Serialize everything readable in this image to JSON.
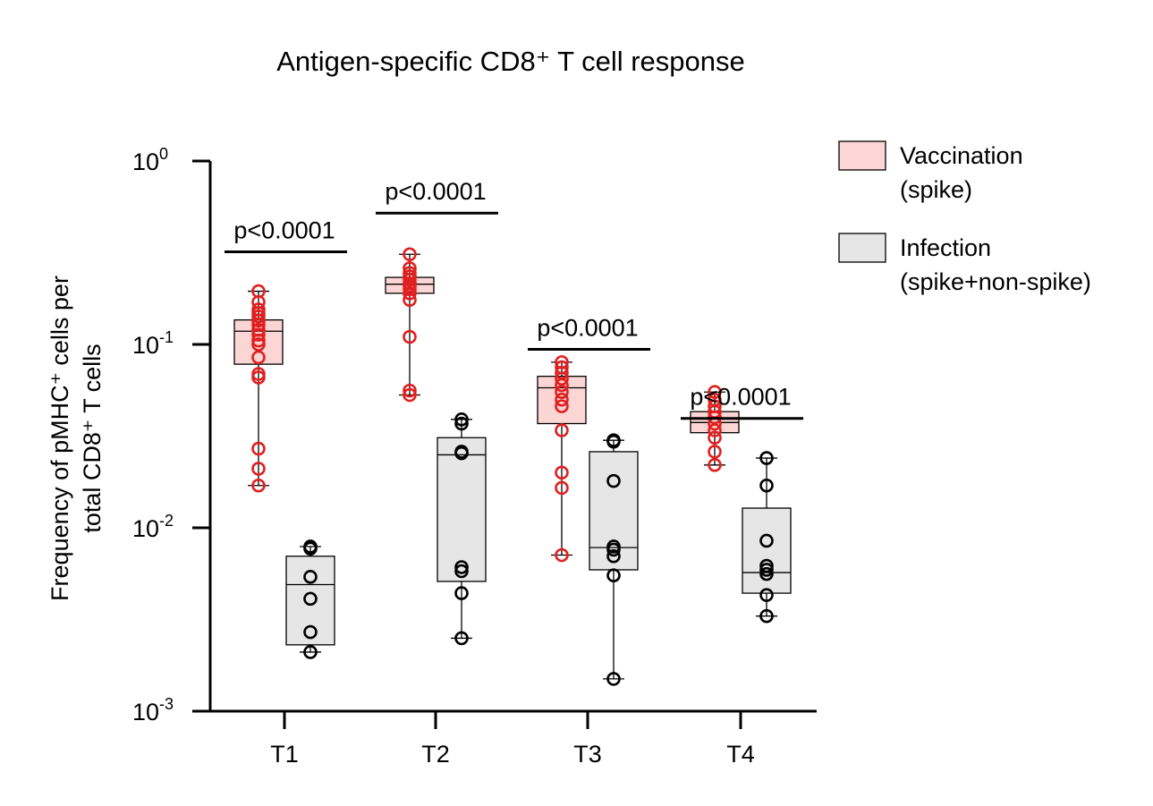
{
  "chart_data": {
    "type": "box",
    "title": "Antigen-specific CD8⁺ T cell response",
    "ylabel_lines": [
      "Frequency of pMHC⁺ cells per",
      "total CD8⁺ T cells"
    ],
    "xlabel": "",
    "yscale": "log",
    "ylim": [
      0.001,
      1
    ],
    "yticks": [
      {
        "value": 1,
        "base": "10",
        "exp": "0"
      },
      {
        "value": 0.1,
        "base": "10",
        "exp": "-1"
      },
      {
        "value": 0.01,
        "base": "10",
        "exp": "-2"
      },
      {
        "value": 0.001,
        "base": "10",
        "exp": "-3"
      }
    ],
    "categories": [
      "T1",
      "T2",
      "T3",
      "T4"
    ],
    "grid": false,
    "legend_position": "right",
    "series": [
      {
        "name": "Vaccination (spike)",
        "legend_lines": [
          "Vaccination",
          "(spike)"
        ],
        "fill": "#fcd5d5",
        "marker_color": "#e02020",
        "boxes": [
          {
            "min": 0.017,
            "q1": 0.078,
            "median": 0.118,
            "q3": 0.136,
            "max": 0.195,
            "points": [
              0.195,
              0.17,
              0.155,
              0.148,
              0.142,
              0.135,
              0.128,
              0.12,
              0.113,
              0.105,
              0.1,
              0.085,
              0.069,
              0.066,
              0.027,
              0.021,
              0.017
            ]
          },
          {
            "min": 0.053,
            "q1": 0.19,
            "median": 0.213,
            "q3": 0.232,
            "max": 0.31,
            "points": [
              0.31,
              0.26,
              0.245,
              0.235,
              0.225,
              0.215,
              0.208,
              0.2,
              0.19,
              0.175,
              0.11,
              0.056,
              0.053
            ]
          },
          {
            "min": 0.0071,
            "q1": 0.037,
            "median": 0.058,
            "q3": 0.067,
            "max": 0.08,
            "points": [
              0.08,
              0.075,
              0.07,
              0.065,
              0.06,
              0.055,
              0.05,
              0.046,
              0.034,
              0.02,
              0.0165,
              0.0071
            ]
          },
          {
            "min": 0.022,
            "q1": 0.033,
            "median": 0.0375,
            "q3": 0.043,
            "max": 0.055,
            "points": [
              0.055,
              0.05,
              0.046,
              0.043,
              0.04,
              0.037,
              0.034,
              0.031,
              0.026,
              0.022
            ]
          }
        ]
      },
      {
        "name": "Infection (spike+non-spike)",
        "legend_lines": [
          "Infection",
          "(spike+non-spike)"
        ],
        "fill": "#e6e6e6",
        "marker_color": "#000000",
        "boxes": [
          {
            "min": 0.0021,
            "q1": 0.0023,
            "median": 0.0049,
            "q3": 0.007,
            "max": 0.0079,
            "points": [
              0.0079,
              0.0077,
              0.0054,
              0.0041,
              0.0027,
              0.0021
            ]
          },
          {
            "min": 0.0025,
            "q1": 0.0051,
            "median": 0.025,
            "q3": 0.031,
            "max": 0.039,
            "points": [
              0.039,
              0.037,
              0.026,
              0.0255,
              0.0061,
              0.0058,
              0.0044,
              0.0025
            ]
          },
          {
            "min": 0.0015,
            "q1": 0.0059,
            "median": 0.0078,
            "q3": 0.026,
            "max": 0.03,
            "points": [
              0.03,
              0.0295,
              0.018,
              0.0079,
              0.0076,
              0.007,
              0.0055,
              0.0015
            ]
          },
          {
            "min": 0.0033,
            "q1": 0.0044,
            "median": 0.0057,
            "q3": 0.0128,
            "max": 0.024,
            "points": [
              0.024,
              0.017,
              0.0085,
              0.0062,
              0.0059,
              0.0056,
              0.0043,
              0.0033
            ]
          }
        ]
      }
    ],
    "annotations": [
      {
        "category": "T1",
        "text": "p<0.0001",
        "level": 0.32
      },
      {
        "category": "T2",
        "text": "p<0.0001",
        "level": 0.52
      },
      {
        "category": "T3",
        "text": "p<0.0001",
        "level": 0.094
      },
      {
        "category": "T4",
        "text": "p<0.0001",
        "level": 0.0395
      }
    ]
  }
}
